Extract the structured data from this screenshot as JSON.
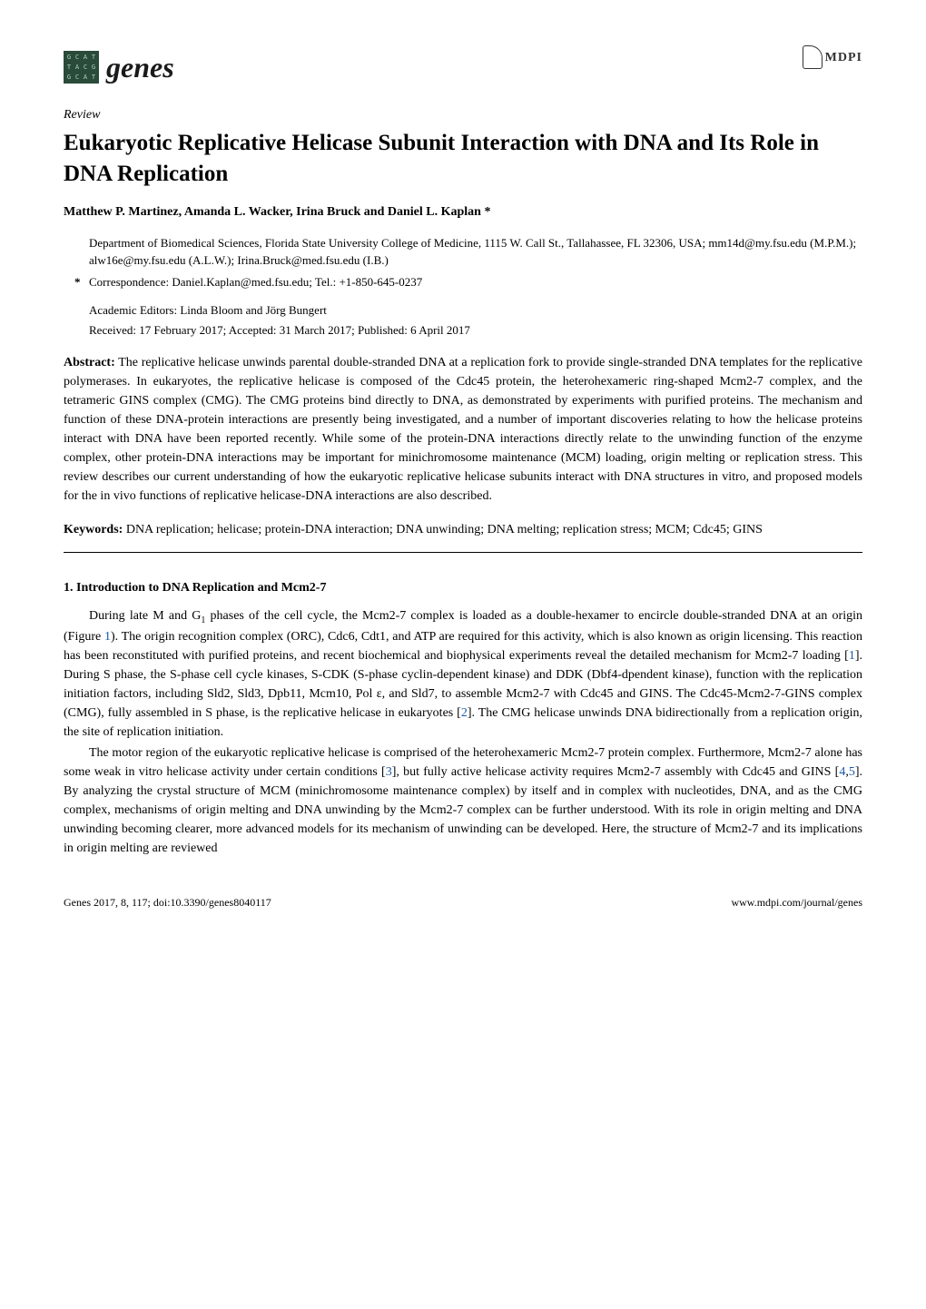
{
  "logo": {
    "grid_letters": [
      "G",
      "C",
      "A",
      "T",
      "T",
      "A",
      "C",
      "G",
      "G",
      "C",
      "A",
      "T"
    ],
    "journal_name": "genes",
    "grid_bg": "#2a4a3a",
    "grid_fg": "#a8d8b8"
  },
  "publisher": {
    "name": "MDPI"
  },
  "article_type": "Review",
  "title": "Eukaryotic Replicative Helicase Subunit Interaction with DNA and Its Role in DNA Replication",
  "authors": "Matthew P. Martinez, Amanda L. Wacker, Irina Bruck and Daniel L. Kaplan *",
  "affiliation": "Department of Biomedical Sciences, Florida State University College of Medicine, 1115 W. Call St., Tallahassee, FL 32306, USA; mm14d@my.fsu.edu (M.P.M.); alw16e@my.fsu.edu (A.L.W.); Irina.Bruck@med.fsu.edu (I.B.)",
  "corresponding": "Correspondence: Daniel.Kaplan@med.fsu.edu; Tel.: +1-850-645-0237",
  "editors": "Academic Editors: Linda Bloom and Jörg Bungert",
  "dates": "Received: 17 February 2017; Accepted: 31 March 2017; Published: 6 April 2017",
  "abstract_label": "Abstract:",
  "abstract_text": " The replicative helicase unwinds parental double-stranded DNA at a replication fork to provide single-stranded DNA templates for the replicative polymerases. In eukaryotes, the replicative helicase is composed of the Cdc45 protein, the heterohexameric ring-shaped Mcm2-7 complex, and the tetrameric GINS complex (CMG). The CMG proteins bind directly to DNA, as demonstrated by experiments with purified proteins. The mechanism and function of these DNA-protein interactions are presently being investigated, and a number of important discoveries relating to how the helicase proteins interact with DNA have been reported recently. While some of the protein-DNA interactions directly relate to the unwinding function of the enzyme complex, other protein-DNA interactions may be important for minichromosome maintenance (MCM) loading, origin melting or replication stress. This review describes our current understanding of how the eukaryotic replicative helicase subunits interact with DNA structures in vitro, and proposed models for the in vivo functions of replicative helicase-DNA interactions are also described.",
  "keywords_label": "Keywords:",
  "keywords_text": " DNA replication; helicase; protein-DNA interaction; DNA unwinding; DNA melting; replication stress; MCM; Cdc45; GINS",
  "section_title": "1. Introduction to DNA Replication and Mcm2-7",
  "body": {
    "p1_pre": "During late M and G",
    "p1_sub": "1",
    "p1_a": " phases of the cell cycle, the Mcm2-7 complex is loaded as a double-hexamer to encircle double-stranded DNA at an origin (Figure ",
    "fig1": "1",
    "p1_b": "). The origin recognition complex (ORC), Cdc6, Cdt1, and ATP are required for this activity, which is also known as origin licensing. This reaction has been reconstituted with purified proteins, and recent biochemical and biophysical experiments reveal the detailed mechanism for Mcm2-7 loading [",
    "ref1": "1",
    "p1_c": "]. During S phase, the S-phase cell cycle kinases, S-CDK (S-phase cyclin-dependent kinase) and DDK (Dbf4-dpendent kinase), function with the replication initiation factors, including Sld2, Sld3, Dpb11, Mcm10, Pol ε, and Sld7, to assemble Mcm2-7 with Cdc45 and GINS. The Cdc45-Mcm2-7-GINS complex (CMG), fully assembled in S phase, is the replicative helicase in eukaryotes [",
    "ref2": "2",
    "p1_d": "]. The CMG helicase unwinds DNA bidirectionally from a replication origin, the site of replication initiation.",
    "p2_a": "The motor region of the eukaryotic replicative helicase is comprised of the heterohexameric Mcm2-7 protein complex. Furthermore, Mcm2-7 alone has some weak in vitro helicase activity under certain conditions [",
    "ref3": "3",
    "p2_b": "], but fully active helicase activity requires Mcm2-7 assembly with Cdc45 and GINS [",
    "ref4": "4",
    "ref_comma": ",",
    "ref5": "5",
    "p2_c": "]. By analyzing the crystal structure of MCM (minichromosome maintenance complex) by itself and in complex with nucleotides, DNA, and as the CMG complex, mechanisms of origin melting and DNA unwinding by the Mcm2-7 complex can be further understood. With its role in origin melting and DNA unwinding becoming clearer, more advanced models for its mechanism of unwinding can be developed. Here, the structure of Mcm2-7 and its implications in origin melting are reviewed"
  },
  "footer": {
    "left": "Genes 2017, 8, 117; doi:10.3390/genes8040117",
    "right": "www.mdpi.com/journal/genes"
  },
  "colors": {
    "ref": "#1a5aa8",
    "text": "#000000",
    "bg": "#ffffff"
  }
}
